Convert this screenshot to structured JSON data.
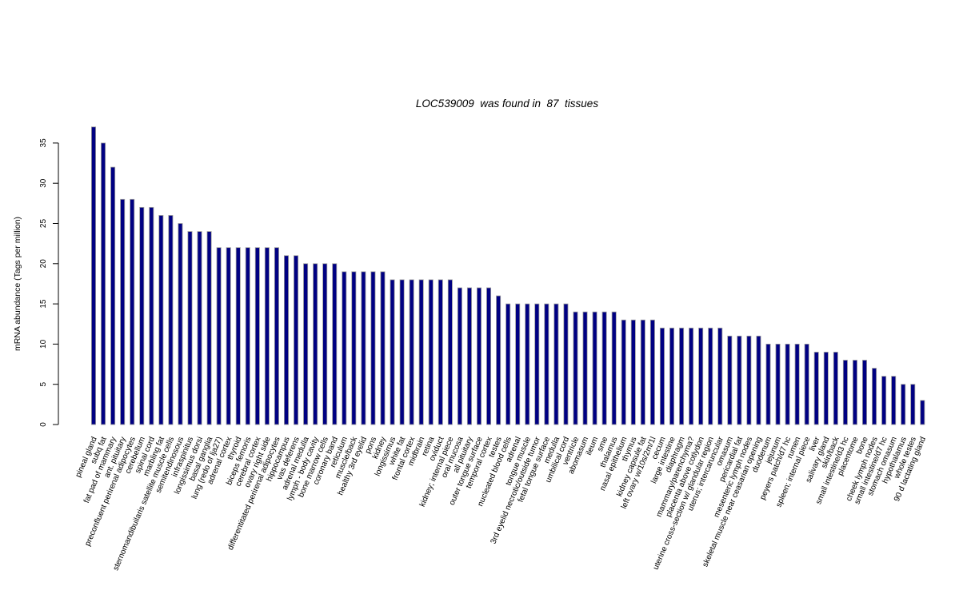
{
  "chart_data": {
    "type": "bar",
    "title": "LOC539009  was found in  87  tissues",
    "xlabel": "",
    "ylabel": "mRNA abundance (Tags per million)",
    "ylim": [
      0,
      37
    ],
    "yticks": [
      0,
      5,
      10,
      15,
      20,
      25,
      30,
      35
    ],
    "grid": false,
    "legend": "none",
    "bar_color": "#000082",
    "bar_border": "#9e9e9e",
    "categories": [
      "pineal gland",
      "subq fat",
      "fat pad of mammary",
      "ant. pituitary",
      "preconfluent perirenal adipocytes",
      "cerebellum",
      "spinal cord",
      "marbling fat",
      "sternomandibuilaris satellite muscle cells",
      "semitendinosous",
      "infraspinitus",
      "longissimus dorsi",
      "basal ganglia",
      "lung (redo of lja27)",
      "adrenal cortex",
      "thyroid",
      "biceps femoris",
      "cerebral cortex",
      "ovary right side",
      "differentitated perirenal adipocytes",
      "hippocampus",
      "vas deferens",
      "adrenal medulla",
      "lymph - body cavity",
      "bone marrow cells",
      "coronary band",
      "reticulum",
      "muscle/back",
      "healthy 3rd eyelid",
      "pons",
      "kidney",
      "longissimus",
      "white fat",
      "frontal cortex",
      "midbrain",
      "retina",
      "oviduct",
      "kidney; internal piece",
      "oral mucosa",
      "all pituitary",
      "outer tongue surface",
      "temporal cortex",
      "testes",
      "nucleated blood cells",
      "adrenal",
      "tongue muscle",
      "3rd eyelid necrotic/outside tumor",
      "fetal tongue surface",
      "medulla",
      "umbilical cord",
      "ventricle",
      "abomasum",
      "ileum",
      "sme",
      "thalamus",
      "nasal epithelium",
      "thymus",
      "kidney capsule fat",
      "left ovary w/10s/2m/1l",
      "cecum",
      "large intestine",
      "diaphragm",
      "mammary/parenchyma?",
      "placenta above cotlydon",
      "uterine cross-section w/ glandular region",
      "uterus; intercaruncular",
      "omasum",
      "pericardial fat",
      "mesenteric lymph nodes",
      "skeletal muscle near ceasarian opening",
      "duodenum",
      "jejunum",
      "peyers patch/d7 hc",
      "rumen",
      "spleen; internal piece",
      "liver",
      "salivary gland",
      "skin/back",
      "small intestine/d3 hc",
      "placentome",
      "bone",
      "cheek lymph nodes",
      "small intestine/d7 hc",
      "stomach omasum",
      "hypothalamus",
      "whole testes",
      "90 d lactating gland"
    ],
    "values": [
      37,
      35,
      32,
      28,
      28,
      27,
      27,
      26,
      26,
      25,
      24,
      24,
      24,
      22,
      22,
      22,
      22,
      22,
      22,
      22,
      21,
      21,
      20,
      20,
      20,
      20,
      19,
      19,
      19,
      19,
      19,
      18,
      18,
      18,
      18,
      18,
      18,
      18,
      17,
      17,
      17,
      17,
      16,
      15,
      15,
      15,
      15,
      15,
      15,
      15,
      14,
      14,
      14,
      14,
      14,
      13,
      13,
      13,
      13,
      12,
      12,
      12,
      12,
      12,
      12,
      12,
      11,
      11,
      11,
      11,
      10,
      10,
      10,
      10,
      10,
      9,
      9,
      9,
      8,
      8,
      8,
      7,
      6,
      6,
      5,
      5,
      3
    ]
  }
}
